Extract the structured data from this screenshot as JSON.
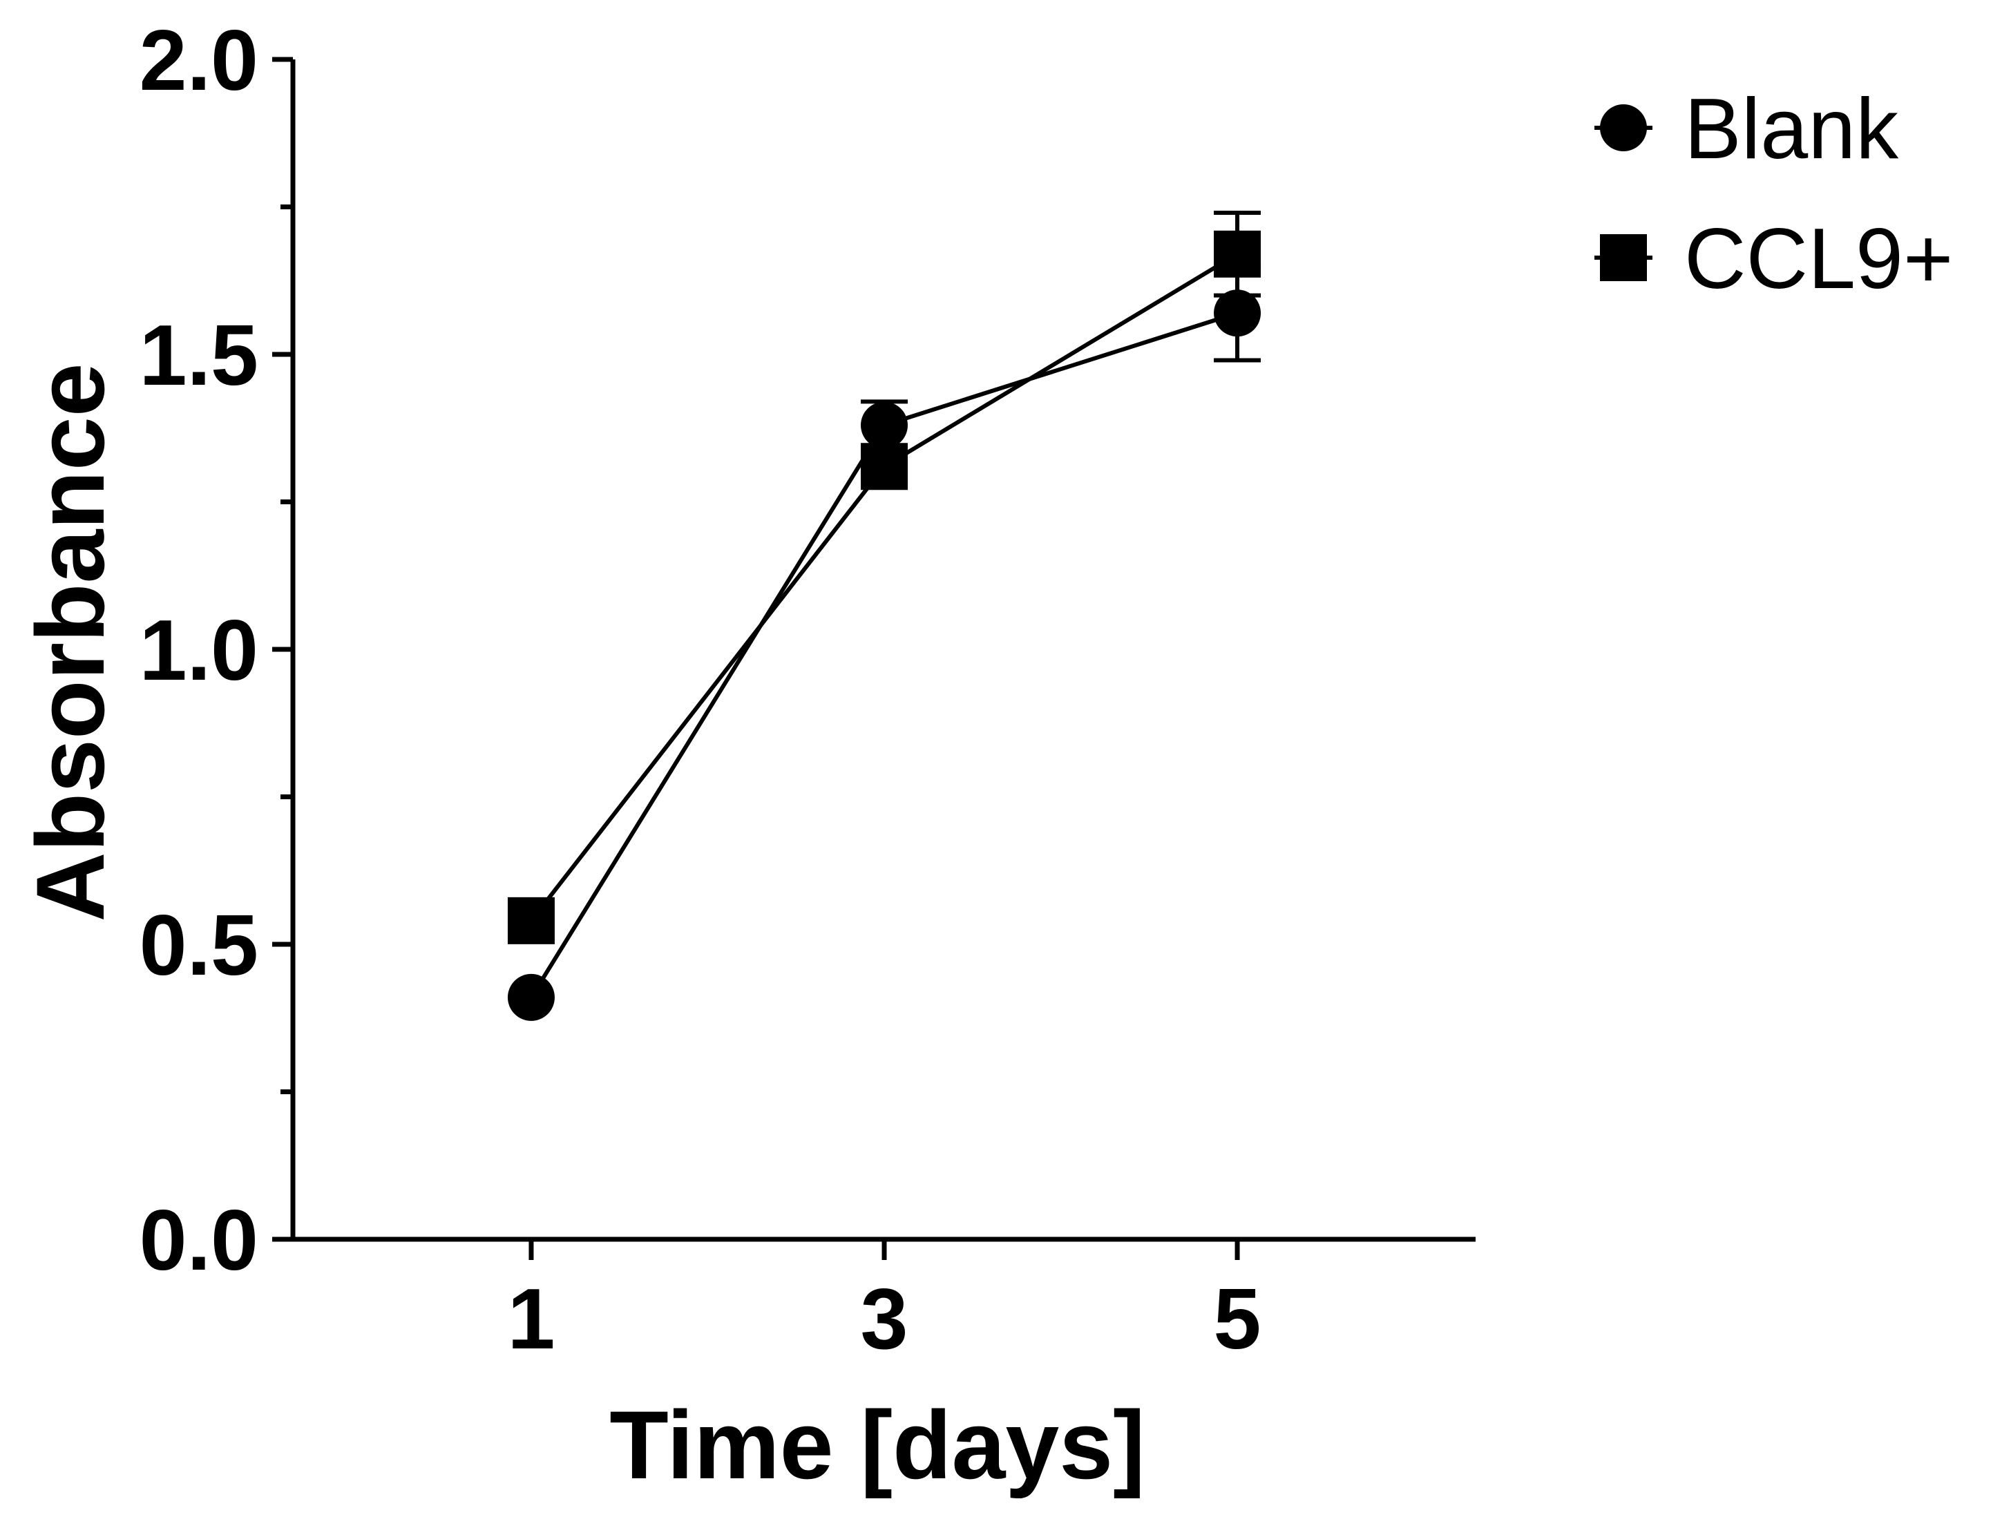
{
  "chart_data": {
    "type": "line",
    "title": "",
    "xlabel": "Time [days]",
    "ylabel": "Absorbance",
    "x": [
      1,
      3,
      5
    ],
    "x_tick_labels": [
      "1",
      "3",
      "5"
    ],
    "xlim": [
      -0.35,
      6.35
    ],
    "ylim": [
      0,
      2.0
    ],
    "y_ticks": [
      0.0,
      0.5,
      1.0,
      1.5,
      2.0
    ],
    "y_tick_labels": [
      "0.0",
      "0.5",
      "1.0",
      "1.5",
      "2.0"
    ],
    "y_minor_ticks": [
      0.25,
      0.75,
      1.25,
      1.75
    ],
    "grid": false,
    "legend_position": "top-right",
    "series": [
      {
        "name": "Blank",
        "marker": "circle",
        "values": [
          0.41,
          1.38,
          1.57
        ],
        "errors": [
          0.0,
          0.04,
          0.08
        ]
      },
      {
        "name": "CCL9+",
        "marker": "square",
        "values": [
          0.54,
          1.31,
          1.67
        ],
        "errors": [
          0.0,
          0.0,
          0.07
        ]
      }
    ]
  }
}
